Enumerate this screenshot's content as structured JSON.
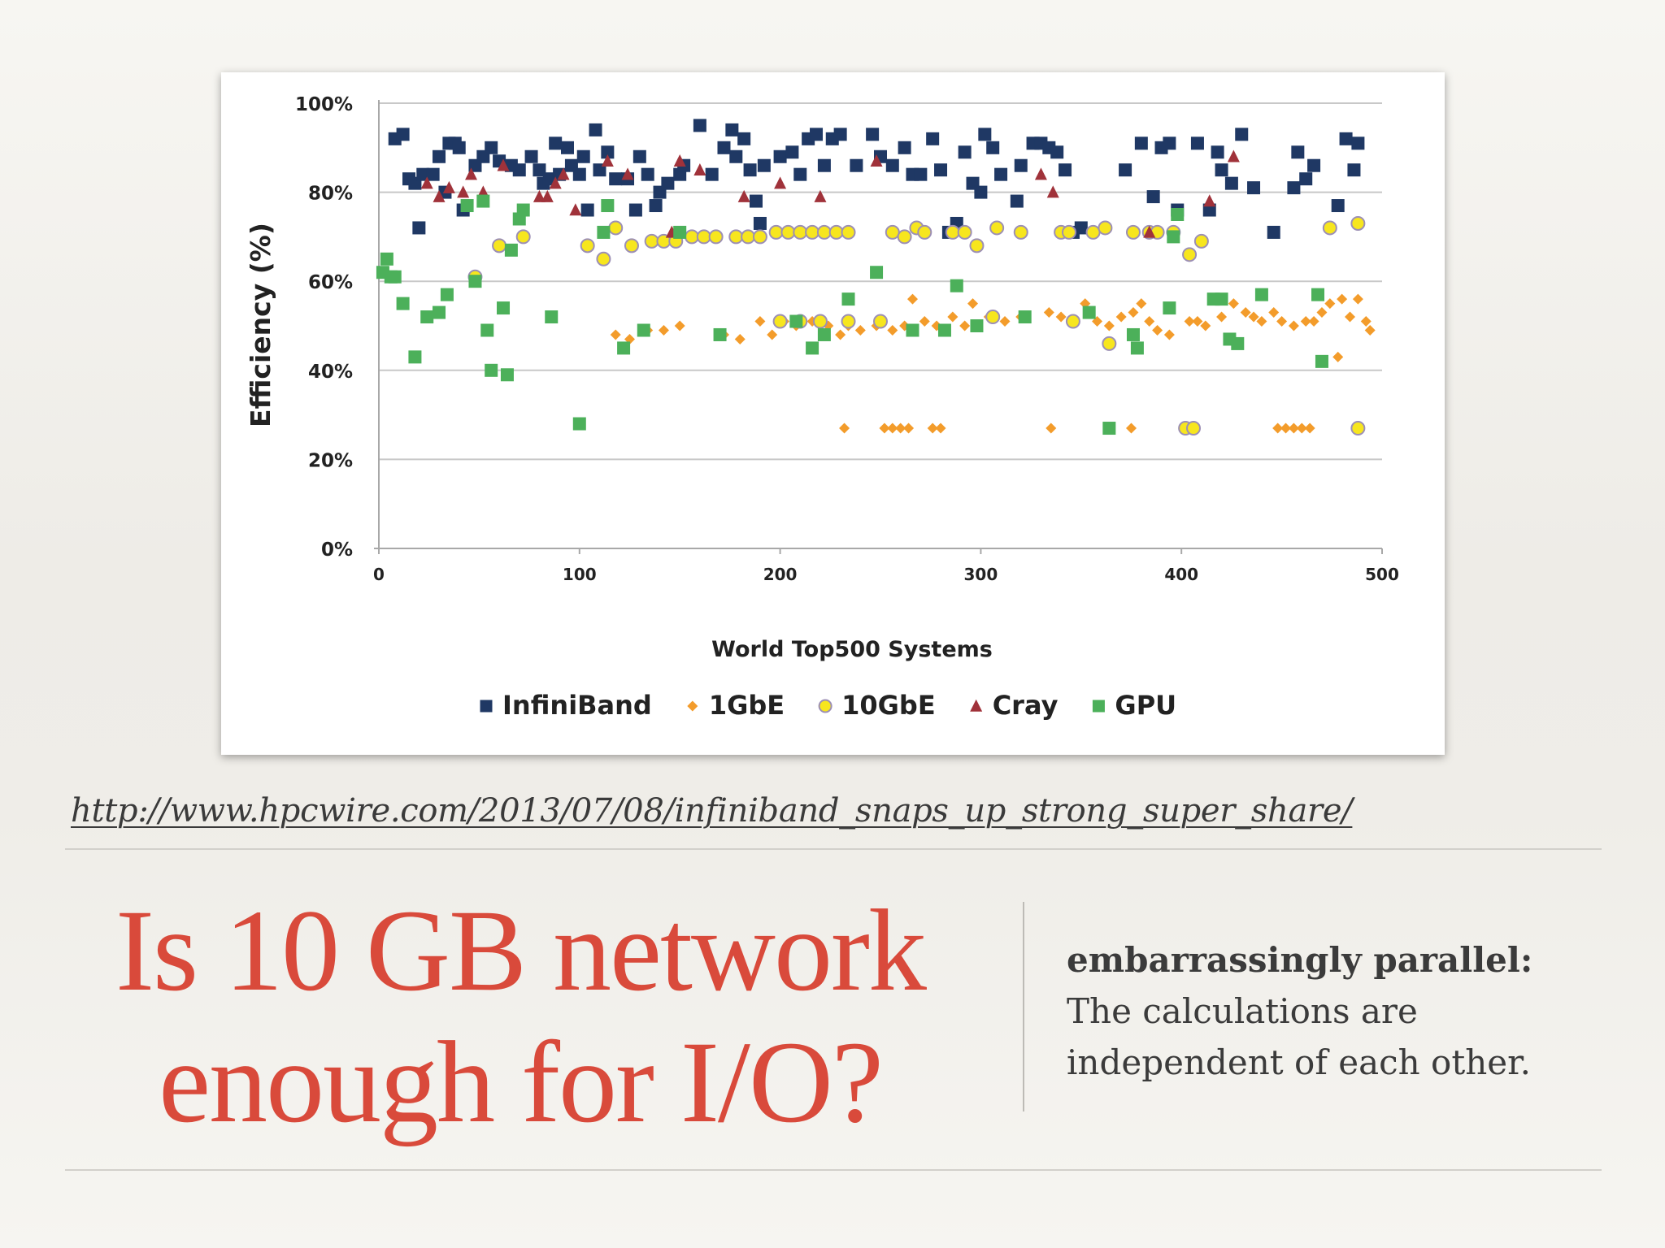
{
  "chart_data": {
    "type": "scatter",
    "ylabel": "Efficiency (%)",
    "xlabel": "World Top500 Systems",
    "xlim": [
      0,
      500
    ],
    "ylim": [
      0,
      100
    ],
    "x_ticks": [
      "0",
      "100",
      "200",
      "300",
      "400",
      "500"
    ],
    "y_ticks": [
      "0%",
      "20%",
      "40%",
      "60%",
      "80%",
      "100%"
    ],
    "grid": "horizontal",
    "legend_position": "bottom",
    "series": [
      {
        "name": "InfiniBand",
        "marker": "square",
        "color": "#1f3864",
        "points": [
          [
            8,
            92
          ],
          [
            12,
            93
          ],
          [
            15,
            83
          ],
          [
            18,
            82
          ],
          [
            20,
            72
          ],
          [
            22,
            84
          ],
          [
            27,
            84
          ],
          [
            30,
            88
          ],
          [
            33,
            80
          ],
          [
            35,
            91
          ],
          [
            38,
            91
          ],
          [
            40,
            90
          ],
          [
            42,
            76
          ],
          [
            48,
            86
          ],
          [
            52,
            88
          ],
          [
            56,
            90
          ],
          [
            60,
            87
          ],
          [
            66,
            86
          ],
          [
            70,
            85
          ],
          [
            76,
            88
          ],
          [
            80,
            85
          ],
          [
            82,
            82
          ],
          [
            85,
            83
          ],
          [
            88,
            91
          ],
          [
            90,
            84
          ],
          [
            94,
            90
          ],
          [
            96,
            86
          ],
          [
            100,
            84
          ],
          [
            102,
            88
          ],
          [
            104,
            76
          ],
          [
            108,
            94
          ],
          [
            110,
            85
          ],
          [
            114,
            89
          ],
          [
            118,
            83
          ],
          [
            124,
            83
          ],
          [
            128,
            76
          ],
          [
            130,
            88
          ],
          [
            134,
            84
          ],
          [
            138,
            77
          ],
          [
            140,
            80
          ],
          [
            144,
            82
          ],
          [
            150,
            84
          ],
          [
            152,
            86
          ],
          [
            160,
            95
          ],
          [
            166,
            84
          ],
          [
            172,
            90
          ],
          [
            176,
            94
          ],
          [
            178,
            88
          ],
          [
            182,
            92
          ],
          [
            185,
            85
          ],
          [
            188,
            78
          ],
          [
            190,
            73
          ],
          [
            192,
            86
          ],
          [
            200,
            88
          ],
          [
            206,
            89
          ],
          [
            210,
            84
          ],
          [
            214,
            92
          ],
          [
            218,
            93
          ],
          [
            222,
            86
          ],
          [
            226,
            92
          ],
          [
            230,
            93
          ],
          [
            238,
            86
          ],
          [
            246,
            93
          ],
          [
            250,
            88
          ],
          [
            256,
            86
          ],
          [
            262,
            90
          ],
          [
            266,
            84
          ],
          [
            270,
            84
          ],
          [
            276,
            92
          ],
          [
            280,
            85
          ],
          [
            284,
            71
          ],
          [
            288,
            73
          ],
          [
            292,
            89
          ],
          [
            296,
            82
          ],
          [
            300,
            80
          ],
          [
            302,
            93
          ],
          [
            306,
            90
          ],
          [
            310,
            84
          ],
          [
            318,
            78
          ],
          [
            320,
            86
          ],
          [
            326,
            91
          ],
          [
            330,
            91
          ],
          [
            334,
            90
          ],
          [
            338,
            89
          ],
          [
            342,
            85
          ],
          [
            346,
            71
          ],
          [
            350,
            72
          ],
          [
            372,
            85
          ],
          [
            380,
            91
          ],
          [
            386,
            79
          ],
          [
            390,
            90
          ],
          [
            394,
            91
          ],
          [
            398,
            76
          ],
          [
            408,
            91
          ],
          [
            414,
            76
          ],
          [
            418,
            89
          ],
          [
            420,
            85
          ],
          [
            425,
            82
          ],
          [
            430,
            93
          ],
          [
            436,
            81
          ],
          [
            446,
            71
          ],
          [
            456,
            81
          ],
          [
            458,
            89
          ],
          [
            462,
            83
          ],
          [
            466,
            86
          ],
          [
            478,
            77
          ],
          [
            482,
            92
          ],
          [
            486,
            85
          ],
          [
            488,
            91
          ]
        ]
      },
      {
        "name": "1GbE",
        "marker": "diamond",
        "color": "#f39c2b",
        "points": [
          [
            118,
            48
          ],
          [
            125,
            47
          ],
          [
            134,
            49
          ],
          [
            142,
            49
          ],
          [
            150,
            50
          ],
          [
            172,
            48
          ],
          [
            180,
            47
          ],
          [
            190,
            51
          ],
          [
            196,
            48
          ],
          [
            202,
            51
          ],
          [
            208,
            50
          ],
          [
            216,
            51
          ],
          [
            224,
            50
          ],
          [
            230,
            48
          ],
          [
            234,
            50
          ],
          [
            240,
            49
          ],
          [
            248,
            50
          ],
          [
            256,
            49
          ],
          [
            262,
            50
          ],
          [
            266,
            56
          ],
          [
            272,
            51
          ],
          [
            278,
            50
          ],
          [
            286,
            52
          ],
          [
            292,
            50
          ],
          [
            296,
            55
          ],
          [
            304,
            52
          ],
          [
            312,
            51
          ],
          [
            320,
            52
          ],
          [
            334,
            53
          ],
          [
            340,
            52
          ],
          [
            346,
            51
          ],
          [
            352,
            55
          ],
          [
            358,
            51
          ],
          [
            364,
            50
          ],
          [
            370,
            52
          ],
          [
            376,
            53
          ],
          [
            380,
            55
          ],
          [
            384,
            51
          ],
          [
            388,
            49
          ],
          [
            394,
            48
          ],
          [
            404,
            51
          ],
          [
            408,
            51
          ],
          [
            412,
            50
          ],
          [
            420,
            52
          ],
          [
            426,
            55
          ],
          [
            432,
            53
          ],
          [
            436,
            52
          ],
          [
            440,
            51
          ],
          [
            446,
            53
          ],
          [
            450,
            51
          ],
          [
            456,
            50
          ],
          [
            462,
            51
          ],
          [
            466,
            51
          ],
          [
            470,
            53
          ],
          [
            474,
            55
          ],
          [
            478,
            43
          ],
          [
            480,
            56
          ],
          [
            484,
            52
          ],
          [
            488,
            56
          ],
          [
            492,
            51
          ],
          [
            494,
            49
          ],
          [
            232,
            27
          ],
          [
            252,
            27
          ],
          [
            256,
            27
          ],
          [
            260,
            27
          ],
          [
            264,
            27
          ],
          [
            276,
            27
          ],
          [
            280,
            27
          ],
          [
            335,
            27
          ],
          [
            375,
            27
          ],
          [
            448,
            27
          ],
          [
            452,
            27
          ],
          [
            456,
            27
          ],
          [
            460,
            27
          ],
          [
            464,
            27
          ]
        ]
      },
      {
        "name": "10GbE",
        "marker": "circle",
        "color": "#f7e61e",
        "points": [
          [
            48,
            61
          ],
          [
            60,
            68
          ],
          [
            72,
            70
          ],
          [
            104,
            68
          ],
          [
            112,
            65
          ],
          [
            118,
            72
          ],
          [
            126,
            68
          ],
          [
            136,
            69
          ],
          [
            142,
            69
          ],
          [
            148,
            69
          ],
          [
            156,
            70
          ],
          [
            162,
            70
          ],
          [
            168,
            70
          ],
          [
            178,
            70
          ],
          [
            184,
            70
          ],
          [
            190,
            70
          ],
          [
            198,
            71
          ],
          [
            204,
            71
          ],
          [
            210,
            71
          ],
          [
            216,
            71
          ],
          [
            222,
            71
          ],
          [
            228,
            71
          ],
          [
            234,
            71
          ],
          [
            256,
            71
          ],
          [
            262,
            70
          ],
          [
            268,
            72
          ],
          [
            272,
            71
          ],
          [
            286,
            71
          ],
          [
            292,
            71
          ],
          [
            298,
            68
          ],
          [
            308,
            72
          ],
          [
            320,
            71
          ],
          [
            340,
            71
          ],
          [
            344,
            71
          ],
          [
            356,
            71
          ],
          [
            362,
            72
          ],
          [
            376,
            71
          ],
          [
            384,
            71
          ],
          [
            388,
            71
          ],
          [
            396,
            71
          ],
          [
            404,
            66
          ],
          [
            410,
            69
          ],
          [
            474,
            72
          ],
          [
            488,
            73
          ],
          [
            200,
            51
          ],
          [
            210,
            51
          ],
          [
            220,
            51
          ],
          [
            234,
            51
          ],
          [
            250,
            51
          ],
          [
            306,
            52
          ],
          [
            346,
            51
          ],
          [
            364,
            46
          ],
          [
            402,
            27
          ],
          [
            406,
            27
          ],
          [
            488,
            27
          ]
        ]
      },
      {
        "name": "Cray",
        "marker": "triangle",
        "color": "#a0323a",
        "points": [
          [
            24,
            82
          ],
          [
            30,
            79
          ],
          [
            35,
            81
          ],
          [
            42,
            80
          ],
          [
            46,
            84
          ],
          [
            52,
            80
          ],
          [
            62,
            86
          ],
          [
            80,
            79
          ],
          [
            84,
            79
          ],
          [
            88,
            82
          ],
          [
            92,
            84
          ],
          [
            98,
            76
          ],
          [
            114,
            87
          ],
          [
            124,
            84
          ],
          [
            146,
            71
          ],
          [
            150,
            87
          ],
          [
            160,
            85
          ],
          [
            182,
            79
          ],
          [
            200,
            82
          ],
          [
            220,
            79
          ],
          [
            248,
            87
          ],
          [
            330,
            84
          ],
          [
            336,
            80
          ],
          [
            384,
            71
          ],
          [
            414,
            78
          ],
          [
            426,
            88
          ]
        ]
      },
      {
        "name": "GPU",
        "marker": "square",
        "color": "#4cb05a",
        "points": [
          [
            2,
            62
          ],
          [
            4,
            65
          ],
          [
            6,
            61
          ],
          [
            8,
            61
          ],
          [
            12,
            55
          ],
          [
            18,
            43
          ],
          [
            24,
            52
          ],
          [
            30,
            53
          ],
          [
            34,
            57
          ],
          [
            44,
            77
          ],
          [
            48,
            60
          ],
          [
            52,
            78
          ],
          [
            54,
            49
          ],
          [
            56,
            40
          ],
          [
            62,
            54
          ],
          [
            64,
            39
          ],
          [
            66,
            67
          ],
          [
            70,
            74
          ],
          [
            72,
            76
          ],
          [
            86,
            52
          ],
          [
            100,
            28
          ],
          [
            112,
            71
          ],
          [
            114,
            77
          ],
          [
            122,
            45
          ],
          [
            132,
            49
          ],
          [
            150,
            71
          ],
          [
            170,
            48
          ],
          [
            208,
            51
          ],
          [
            216,
            45
          ],
          [
            222,
            48
          ],
          [
            234,
            56
          ],
          [
            248,
            62
          ],
          [
            266,
            49
          ],
          [
            282,
            49
          ],
          [
            288,
            59
          ],
          [
            298,
            50
          ],
          [
            322,
            52
          ],
          [
            354,
            53
          ],
          [
            364,
            27
          ],
          [
            376,
            48
          ],
          [
            378,
            45
          ],
          [
            394,
            54
          ],
          [
            396,
            70
          ],
          [
            398,
            75
          ],
          [
            416,
            56
          ],
          [
            420,
            56
          ],
          [
            424,
            47
          ],
          [
            428,
            46
          ],
          [
            440,
            57
          ],
          [
            468,
            57
          ],
          [
            470,
            42
          ]
        ]
      }
    ]
  },
  "source_url": "http://www.hpcwire.com/2013/07/08/infiniband_snaps_up_strong_super_share/",
  "headline": {
    "line1": "Is 10 GB network",
    "line2": "enough for I/O?"
  },
  "note": {
    "term": "embarrassingly parallel:",
    "desc": "The calculations are independent of each other."
  }
}
